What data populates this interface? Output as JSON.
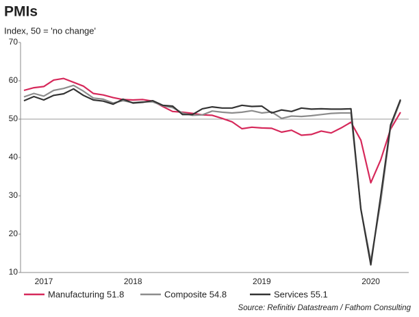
{
  "chart_data": {
    "type": "line",
    "title": "PMIs",
    "subtitle": "Index, 50 = 'no change'",
    "source": "Source: Refinitiv Datastream / Fathom Consulting",
    "categories": [
      null,
      null,
      "2017",
      null,
      null,
      null,
      null,
      null,
      null,
      null,
      null,
      "2018",
      null,
      null,
      null,
      null,
      null,
      null,
      null,
      null,
      null,
      null,
      null,
      null,
      "2019",
      null,
      null,
      null,
      null,
      null,
      null,
      null,
      null,
      null,
      null,
      "2020",
      null,
      null,
      null
    ],
    "ylim": [
      10,
      70
    ],
    "yticks": [
      10,
      20,
      30,
      40,
      50,
      60,
      70
    ],
    "reference_line": 50,
    "series": [
      {
        "name": "Manufacturing 51.8",
        "color": "#d6285a",
        "values": [
          57.5,
          58.2,
          58.5,
          60.2,
          60.6,
          59.6,
          58.6,
          56.7,
          56.3,
          55.6,
          55.1,
          55.0,
          55.1,
          54.7,
          53.3,
          52.0,
          51.8,
          51.5,
          51.1,
          51.0,
          50.2,
          49.3,
          47.5,
          47.9,
          47.7,
          47.6,
          46.6,
          47.1,
          45.8,
          46.0,
          46.9,
          46.4,
          47.7,
          49.2,
          44.5,
          33.4,
          39.4,
          47.4,
          51.8
        ]
      },
      {
        "name": "Composite 54.8",
        "color": "#8c8c8c",
        "values": [
          55.8,
          56.7,
          56.0,
          57.5,
          58.0,
          58.8,
          57.3,
          55.5,
          55.2,
          54.2,
          54.8,
          54.3,
          54.5,
          54.5,
          53.5,
          53.0,
          51.6,
          51.0,
          51.1,
          52.1,
          51.8,
          51.6,
          51.8,
          52.2,
          51.6,
          51.9,
          50.2,
          50.8,
          50.7,
          50.9,
          51.2,
          51.5,
          51.6,
          51.6,
          26.5,
          13.0,
          28.5,
          48.0,
          54.8
        ]
      },
      {
        "name": "Services 55.1",
        "color": "#333333",
        "values": [
          54.8,
          55.9,
          55.0,
          56.2,
          56.6,
          57.9,
          56.2,
          55.0,
          54.7,
          53.9,
          55.2,
          54.2,
          54.4,
          54.8,
          53.6,
          53.4,
          51.2,
          51.2,
          52.7,
          53.2,
          52.9,
          52.9,
          53.6,
          53.3,
          53.4,
          51.6,
          52.4,
          52.0,
          52.9,
          52.6,
          52.7,
          52.6,
          52.6,
          52.7,
          26.5,
          12.0,
          30.0,
          48.5,
          55.1
        ]
      }
    ]
  }
}
